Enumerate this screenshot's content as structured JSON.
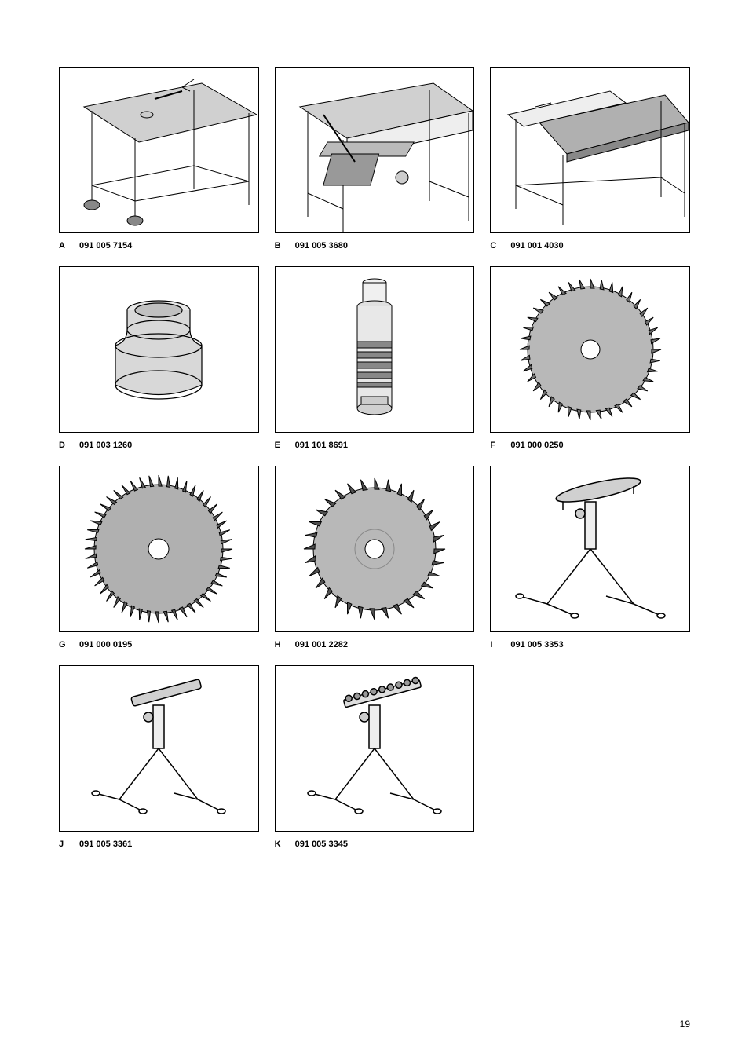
{
  "page_number": "19",
  "items": [
    {
      "letter": "A",
      "code": "091 005 7154",
      "icon": "table-saw-legs"
    },
    {
      "letter": "B",
      "code": "091 005 3680",
      "icon": "table-saw-sliding"
    },
    {
      "letter": "C",
      "code": "091 001 4030",
      "icon": "table-saw-extension"
    },
    {
      "letter": "D",
      "code": "091 003 1260",
      "icon": "adapter-cone"
    },
    {
      "letter": "E",
      "code": "091 101 8691",
      "icon": "spray-can"
    },
    {
      "letter": "F",
      "code": "091 000 0250",
      "icon": "saw-blade-fine"
    },
    {
      "letter": "G",
      "code": "091 000 0195",
      "icon": "saw-blade-medium"
    },
    {
      "letter": "H",
      "code": "091 001 2282",
      "icon": "saw-blade-coarse"
    },
    {
      "letter": "I",
      "code": "091 005 3353",
      "icon": "roller-stand"
    },
    {
      "letter": "J",
      "code": "091 005 3361",
      "icon": "roller-stand-small"
    },
    {
      "letter": "K",
      "code": "091 005 3345",
      "icon": "roller-stand-ball"
    }
  ],
  "colors": {
    "border": "#000000",
    "background": "#ffffff",
    "text": "#000000",
    "gray_light": "#d0d0d0",
    "gray_med": "#a0a0a0",
    "gray_dark": "#606060"
  }
}
